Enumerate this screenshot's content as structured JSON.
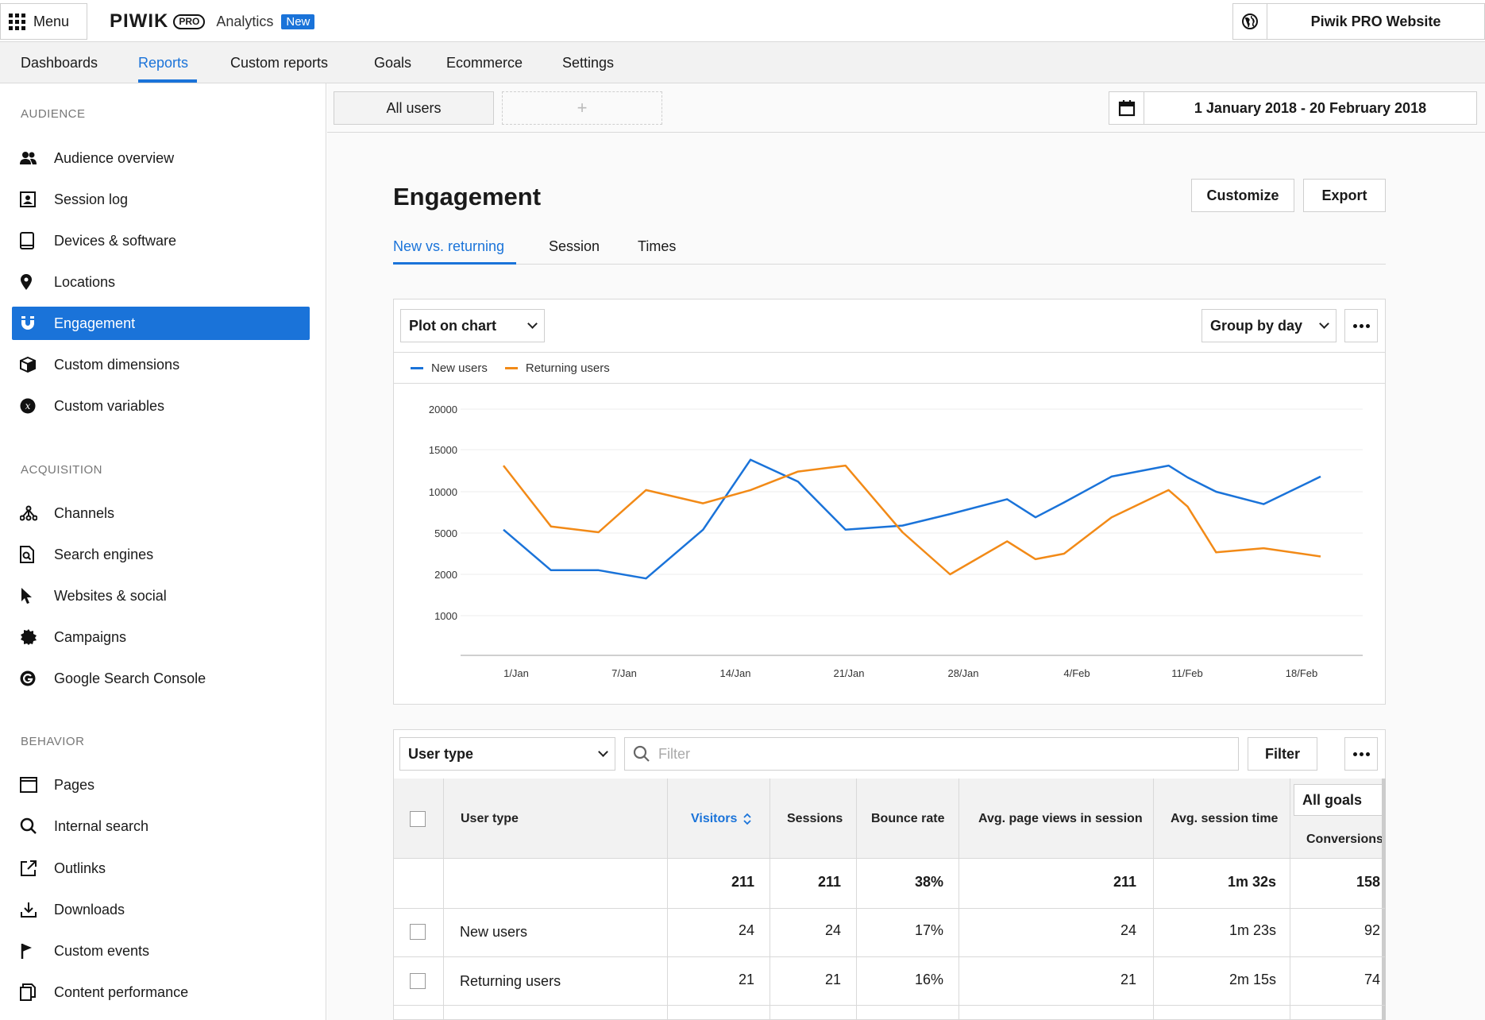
{
  "topbar": {
    "menu_label": "Menu",
    "logo_word": "PIWIK",
    "logo_pro": "PRO",
    "product": "Analytics",
    "new_badge": "New",
    "site_name": "Piwik PRO Website"
  },
  "nav": {
    "items": [
      "Dashboards",
      "Reports",
      "Custom reports",
      "Goals",
      "Ecommerce",
      "Settings"
    ],
    "active": "Reports"
  },
  "sidebar": {
    "audience_title": "AUDIENCE",
    "audience": [
      {
        "label": "Audience overview",
        "icon": "users-icon"
      },
      {
        "label": "Session log",
        "icon": "session-log-icon"
      },
      {
        "label": "Devices & software",
        "icon": "tablet-icon"
      },
      {
        "label": "Locations",
        "icon": "map-pin-icon"
      },
      {
        "label": "Engagement",
        "icon": "magnet-icon"
      },
      {
        "label": "Custom dimensions",
        "icon": "cube-icon"
      },
      {
        "label": "Custom variables",
        "icon": "variable-icon"
      }
    ],
    "acquisition_title": "ACQUISITION",
    "acquisition": [
      {
        "label": "Channels",
        "icon": "channels-icon"
      },
      {
        "label": "Search engines",
        "icon": "search-engine-icon"
      },
      {
        "label": "Websites & social",
        "icon": "cursor-icon"
      },
      {
        "label": "Campaigns",
        "icon": "badge-icon"
      },
      {
        "label": "Google Search Console",
        "icon": "google-icon"
      }
    ],
    "behavior_title": "BEHAVIOR",
    "behavior": [
      {
        "label": "Pages",
        "icon": "page-icon"
      },
      {
        "label": "Internal search",
        "icon": "search-icon"
      },
      {
        "label": "Outlinks",
        "icon": "external-link-icon"
      },
      {
        "label": "Downloads",
        "icon": "download-icon"
      },
      {
        "label": "Custom events",
        "icon": "flag-icon"
      },
      {
        "label": "Content performance",
        "icon": "copy-icon"
      }
    ],
    "active": "Engagement"
  },
  "segments": {
    "current": "All users",
    "add": "+",
    "date_range": "1 January 2018 - 20 February 2018"
  },
  "page": {
    "title": "Engagement",
    "customize": "Customize",
    "export": "Export",
    "tabs": [
      "New vs. returning",
      "Session",
      "Times"
    ],
    "active_tab": "New vs. returning"
  },
  "chart_controls": {
    "plot": "Plot on chart",
    "group": "Group by day"
  },
  "chart_data": {
    "type": "line",
    "title": "",
    "xlabel": "",
    "ylabel": "",
    "y_ticks": [
      "1000",
      "2000",
      "5000",
      "10000",
      "15000",
      "20000"
    ],
    "x_ticks": [
      "1/Jan",
      "7/Jan",
      "14/Jan",
      "21/Jan",
      "28/Jan",
      "4/Feb",
      "11/Feb",
      "18/Feb"
    ],
    "ylim": [
      0,
      20000
    ],
    "grid": true,
    "legend": "top-left",
    "series": [
      {
        "name": "New users",
        "color": "#1a73d9",
        "points": [
          [
            0,
            5400
          ],
          [
            5,
            2300
          ],
          [
            10,
            2300
          ],
          [
            15,
            1900
          ],
          [
            21,
            5400
          ],
          [
            26,
            13800
          ],
          [
            31,
            11200
          ],
          [
            36,
            5400
          ],
          [
            42,
            5900
          ],
          [
            47,
            7300
          ],
          [
            53,
            9100
          ],
          [
            56,
            6900
          ],
          [
            59,
            8700
          ],
          [
            64,
            11800
          ],
          [
            70,
            13100
          ],
          [
            72,
            11700
          ],
          [
            75,
            10000
          ],
          [
            80,
            8500
          ],
          [
            86,
            11800
          ]
        ]
      },
      {
        "name": "Returning users",
        "color": "#f28a17",
        "points": [
          [
            0,
            13100
          ],
          [
            5,
            5800
          ],
          [
            10,
            5100
          ],
          [
            15,
            10200
          ],
          [
            21,
            8600
          ],
          [
            26,
            10200
          ],
          [
            31,
            12400
          ],
          [
            36,
            13100
          ],
          [
            42,
            5100
          ],
          [
            47,
            2000
          ],
          [
            53,
            4400
          ],
          [
            56,
            3100
          ],
          [
            59,
            3500
          ],
          [
            64,
            6900
          ],
          [
            70,
            10200
          ],
          [
            72,
            8200
          ],
          [
            75,
            3600
          ],
          [
            80,
            3900
          ],
          [
            86,
            3300
          ]
        ]
      }
    ]
  },
  "table": {
    "dimension": "User type",
    "filter_placeholder": "Filter",
    "filter_button": "Filter",
    "goals_select": "All goals",
    "columns": [
      "User type",
      "Visitors",
      "Sessions",
      "Bounce rate",
      "Avg. page views in session",
      "Avg. session time",
      "Conversions"
    ],
    "sorted_column": "Visitors",
    "totals": [
      "211",
      "211",
      "38%",
      "211",
      "1m 32s",
      "158"
    ],
    "rows": [
      {
        "label": "New users",
        "values": [
          "24",
          "24",
          "17%",
          "24",
          "1m 23s",
          "92"
        ]
      },
      {
        "label": "Returning users",
        "values": [
          "21",
          "21",
          "16%",
          "21",
          "2m 15s",
          "74"
        ]
      }
    ]
  }
}
